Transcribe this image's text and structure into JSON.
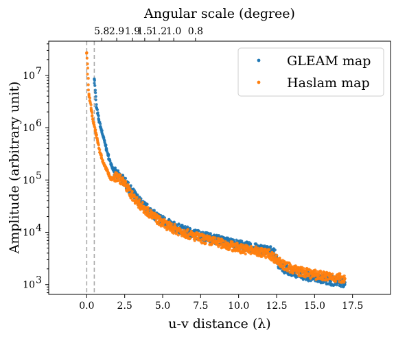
{
  "chart_data": {
    "type": "scatter",
    "xlabel": "u-v distance (λ)",
    "ylabel": "Amplitude (arbitrary unit)",
    "top_xlabel": "Angular scale (degree)",
    "xlim": [
      -2.5,
      20.0
    ],
    "ylim": [
      650,
      45000000
    ],
    "y_scale": "log",
    "x_ticks": [
      0.0,
      2.5,
      5.0,
      7.5,
      10.0,
      12.5,
      15.0,
      17.5
    ],
    "x_tick_labels": [
      "0.0",
      "2.5",
      "5.0",
      "7.5",
      "10.0",
      "12.5",
      "15.0",
      "17.5"
    ],
    "y_ticks": [
      1000,
      10000,
      100000,
      1000000,
      10000000
    ],
    "y_tick_labels": [
      "10",
      "10",
      "10",
      "10",
      "10"
    ],
    "y_tick_exponents": [
      "3",
      "4",
      "5",
      "6",
      "7"
    ],
    "top_ticks": [
      5.8,
      2.9,
      1.9,
      1.5,
      1.2,
      1.0,
      0.8
    ],
    "top_tick_labels": [
      "5.8",
      "2.9",
      "1.9",
      "1.5",
      "1.2",
      "1.0",
      "0.8"
    ],
    "vlines": [
      0.0,
      0.5
    ],
    "vline_color": "#aaaaaa",
    "legend_position": "upper-right",
    "series": [
      {
        "name": "GLEAM map",
        "color": "#1f77b4",
        "points": [
          [
            0.5,
            8500000
          ],
          [
            0.65,
            2400000
          ],
          [
            0.8,
            1400000
          ],
          [
            0.95,
            950000
          ],
          [
            1.1,
            650000
          ],
          [
            1.25,
            450000
          ],
          [
            1.4,
            300000
          ],
          [
            1.6,
            200000
          ],
          [
            1.8,
            145000
          ],
          [
            2.0,
            125000
          ],
          [
            2.3,
            110000
          ],
          [
            2.6,
            85000
          ],
          [
            3.0,
            58000
          ],
          [
            3.5,
            38000
          ],
          [
            4.0,
            28000
          ],
          [
            4.5,
            21000
          ],
          [
            5.0,
            17000
          ],
          [
            5.5,
            14000
          ],
          [
            6.0,
            12000
          ],
          [
            7.0,
            9500
          ],
          [
            8.0,
            8000
          ],
          [
            9.0,
            6800
          ],
          [
            10.0,
            5800
          ],
          [
            11.0,
            5000
          ],
          [
            12.0,
            4500
          ],
          [
            12.3,
            4200
          ],
          [
            12.6,
            2600
          ],
          [
            13.0,
            2000
          ],
          [
            14.0,
            1600
          ],
          [
            15.0,
            1350
          ],
          [
            16.0,
            1200
          ],
          [
            17.0,
            1100
          ]
        ]
      },
      {
        "name": "Haslam map",
        "color": "#ff7f0e",
        "points": [
          [
            0.0,
            27000000
          ],
          [
            0.15,
            4200000
          ],
          [
            0.3,
            2200000
          ],
          [
            0.45,
            1200000
          ],
          [
            0.6,
            800000
          ],
          [
            0.75,
            500000
          ],
          [
            0.9,
            320000
          ],
          [
            1.05,
            230000
          ],
          [
            1.25,
            170000
          ],
          [
            1.45,
            130000
          ],
          [
            1.6,
            105000
          ],
          [
            1.8,
            108000
          ],
          [
            2.0,
            118000
          ],
          [
            2.3,
            100000
          ],
          [
            2.6,
            75000
          ],
          [
            3.0,
            50000
          ],
          [
            3.5,
            34000
          ],
          [
            4.0,
            25000
          ],
          [
            4.5,
            19000
          ],
          [
            5.0,
            15000
          ],
          [
            5.5,
            12500
          ],
          [
            6.0,
            11000
          ],
          [
            7.0,
            8500
          ],
          [
            8.0,
            7000
          ],
          [
            9.0,
            6000
          ],
          [
            10.0,
            5000
          ],
          [
            11.0,
            4400
          ],
          [
            12.0,
            3900
          ],
          [
            12.6,
            2900
          ],
          [
            13.0,
            2300
          ],
          [
            14.0,
            1800
          ],
          [
            15.0,
            1550
          ],
          [
            16.0,
            1400
          ],
          [
            17.0,
            1300
          ]
        ]
      }
    ]
  }
}
